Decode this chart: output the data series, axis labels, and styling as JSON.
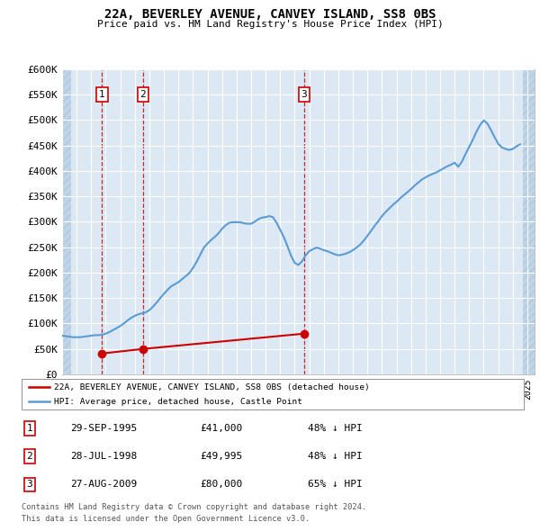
{
  "title": "22A, BEVERLEY AVENUE, CANVEY ISLAND, SS8 0BS",
  "subtitle": "Price paid vs. HM Land Registry's House Price Index (HPI)",
  "ylabel_ticks": [
    "£0",
    "£50K",
    "£100K",
    "£150K",
    "£200K",
    "£250K",
    "£300K",
    "£350K",
    "£400K",
    "£450K",
    "£500K",
    "£550K",
    "£600K"
  ],
  "ytick_vals": [
    0,
    50000,
    100000,
    150000,
    200000,
    250000,
    300000,
    350000,
    400000,
    450000,
    500000,
    550000,
    600000
  ],
  "ylim": [
    0,
    600000
  ],
  "xlim_start": 1993.0,
  "xlim_end": 2025.5,
  "background_color": "#dce9f5",
  "hatch_color": "#c0d4e8",
  "grid_color": "#ffffff",
  "sale_color": "#cc0000",
  "hpi_color": "#5b9bd5",
  "sale_dates": [
    1995.75,
    1998.57,
    2009.65
  ],
  "sale_prices": [
    41000,
    49995,
    80000
  ],
  "sale_labels": [
    "1",
    "2",
    "3"
  ],
  "legend_sale_label": "22A, BEVERLEY AVENUE, CANVEY ISLAND, SS8 0BS (detached house)",
  "legend_hpi_label": "HPI: Average price, detached house, Castle Point",
  "table_data": [
    [
      "1",
      "29-SEP-1995",
      "£41,000",
      "48% ↓ HPI"
    ],
    [
      "2",
      "28-JUL-1998",
      "£49,995",
      "48% ↓ HPI"
    ],
    [
      "3",
      "27-AUG-2009",
      "£80,000",
      "65% ↓ HPI"
    ]
  ],
  "footnote1": "Contains HM Land Registry data © Crown copyright and database right 2024.",
  "footnote2": "This data is licensed under the Open Government Licence v3.0.",
  "hpi_data": {
    "years": [
      1993.0,
      1993.25,
      1993.5,
      1993.75,
      1994.0,
      1994.25,
      1994.5,
      1994.75,
      1995.0,
      1995.25,
      1995.5,
      1995.75,
      1996.0,
      1996.25,
      1996.5,
      1996.75,
      1997.0,
      1997.25,
      1997.5,
      1997.75,
      1998.0,
      1998.25,
      1998.5,
      1998.75,
      1999.0,
      1999.25,
      1999.5,
      1999.75,
      2000.0,
      2000.25,
      2000.5,
      2000.75,
      2001.0,
      2001.25,
      2001.5,
      2001.75,
      2002.0,
      2002.25,
      2002.5,
      2002.75,
      2003.0,
      2003.25,
      2003.5,
      2003.75,
      2004.0,
      2004.25,
      2004.5,
      2004.75,
      2005.0,
      2005.25,
      2005.5,
      2005.75,
      2006.0,
      2006.25,
      2006.5,
      2006.75,
      2007.0,
      2007.25,
      2007.5,
      2007.75,
      2008.0,
      2008.25,
      2008.5,
      2008.75,
      2009.0,
      2009.25,
      2009.5,
      2009.75,
      2010.0,
      2010.25,
      2010.5,
      2010.75,
      2011.0,
      2011.25,
      2011.5,
      2011.75,
      2012.0,
      2012.25,
      2012.5,
      2012.75,
      2013.0,
      2013.25,
      2013.5,
      2013.75,
      2014.0,
      2014.25,
      2014.5,
      2014.75,
      2015.0,
      2015.25,
      2015.5,
      2015.75,
      2016.0,
      2016.25,
      2016.5,
      2016.75,
      2017.0,
      2017.25,
      2017.5,
      2017.75,
      2018.0,
      2018.25,
      2018.5,
      2018.75,
      2019.0,
      2019.25,
      2019.5,
      2019.75,
      2020.0,
      2020.25,
      2020.5,
      2020.75,
      2021.0,
      2021.25,
      2021.5,
      2021.75,
      2022.0,
      2022.25,
      2022.5,
      2022.75,
      2023.0,
      2023.25,
      2023.5,
      2023.75,
      2024.0,
      2024.25,
      2024.5
    ],
    "values": [
      76000,
      75000,
      74000,
      73000,
      73000,
      73000,
      74000,
      75000,
      76000,
      77000,
      77000,
      78000,
      80000,
      83000,
      87000,
      91000,
      95000,
      100000,
      106000,
      111000,
      115000,
      118000,
      120000,
      122000,
      126000,
      133000,
      141000,
      150000,
      158000,
      166000,
      173000,
      177000,
      181000,
      187000,
      193000,
      199000,
      209000,
      221000,
      235000,
      249000,
      257000,
      264000,
      270000,
      277000,
      286000,
      293000,
      298000,
      299000,
      299000,
      299000,
      297000,
      296000,
      296000,
      300000,
      305000,
      308000,
      309000,
      311000,
      309000,
      298000,
      284000,
      270000,
      252000,
      233000,
      219000,
      215000,
      222000,
      234000,
      242000,
      246000,
      249000,
      247000,
      244000,
      242000,
      239000,
      236000,
      234000,
      235000,
      237000,
      240000,
      244000,
      249000,
      255000,
      263000,
      272000,
      282000,
      292000,
      301000,
      311000,
      319000,
      326000,
      333000,
      339000,
      346000,
      352000,
      358000,
      364000,
      371000,
      377000,
      383000,
      387000,
      391000,
      394000,
      397000,
      401000,
      405000,
      409000,
      412000,
      416000,
      408000,
      418000,
      433000,
      447000,
      461000,
      477000,
      490000,
      499000,
      493000,
      480000,
      466000,
      453000,
      446000,
      443000,
      441000,
      443000,
      448000,
      452000
    ]
  }
}
